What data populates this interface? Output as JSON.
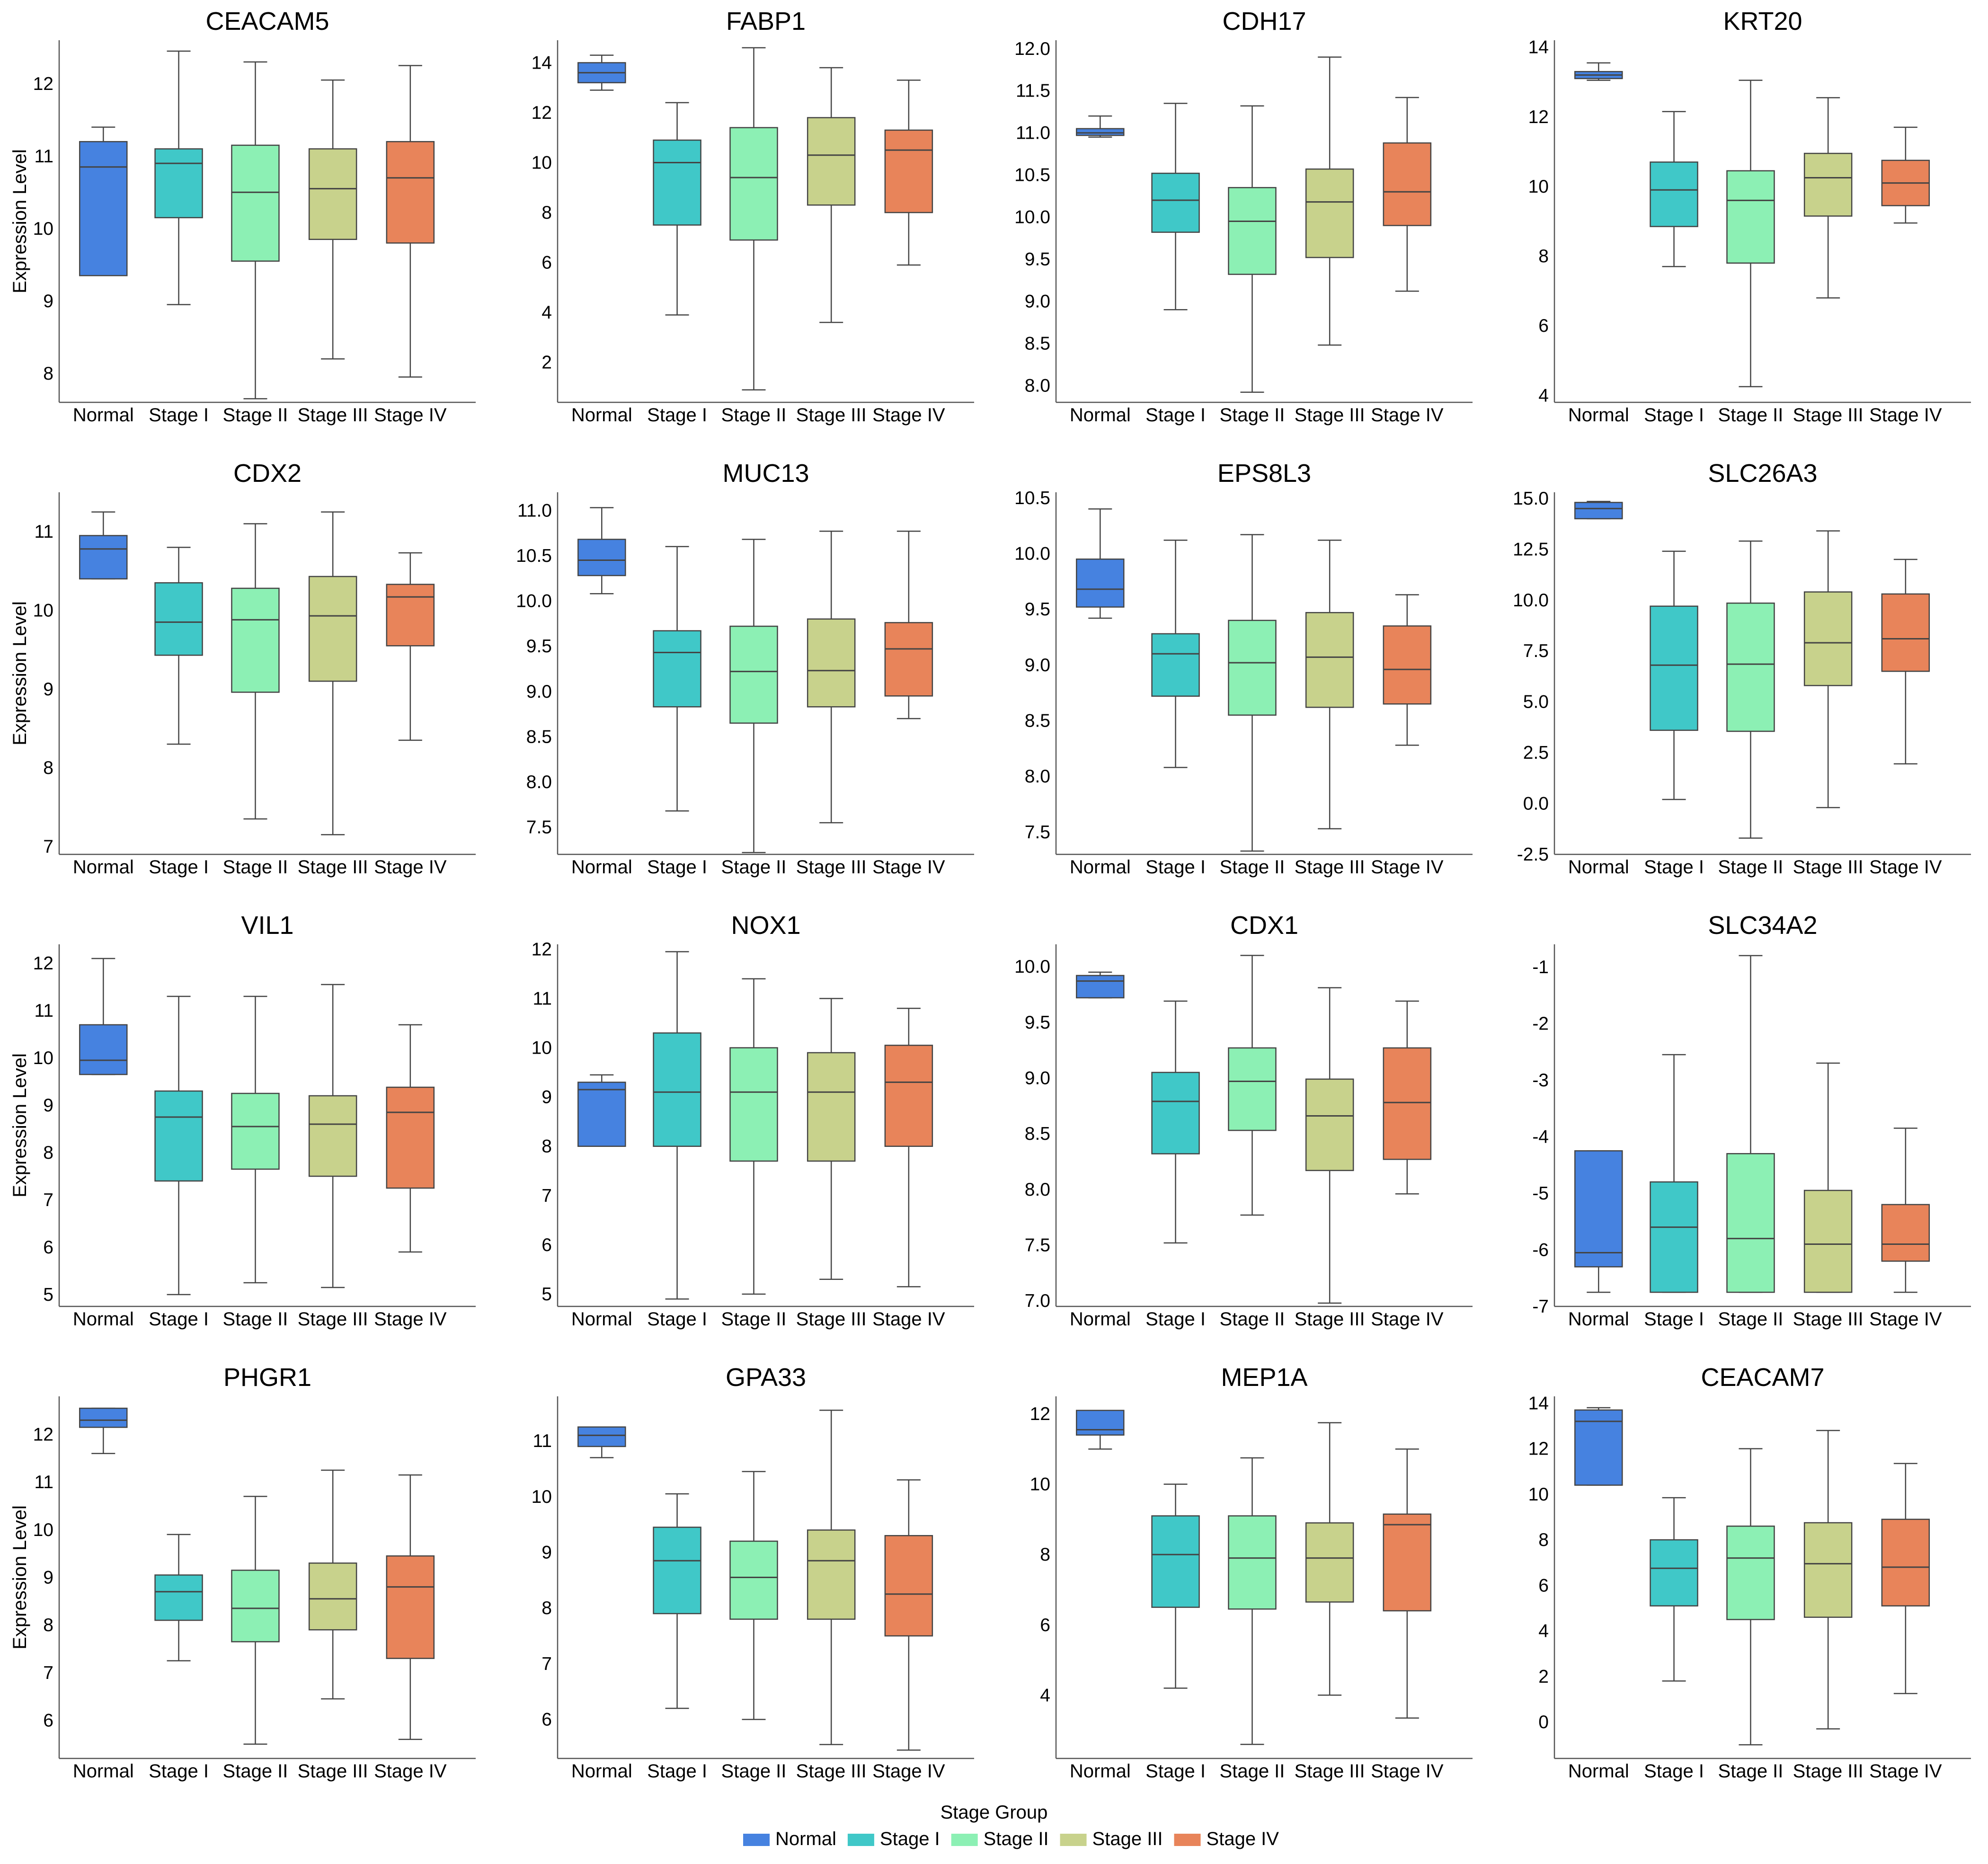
{
  "colors": {
    "Normal": "#4682e0",
    "Stage I": "#40c8c8",
    "Stage II": "#8cf0b4",
    "Stage III": "#c8d28c",
    "Stage IV": "#e8845a",
    "axis": "#555555",
    "box_edge": "#444444"
  },
  "chart_data": {
    "type": "boxplot",
    "ylabel": "Expression Level",
    "categories": [
      "Normal",
      "Stage I",
      "Stage II",
      "Stage III",
      "Stage IV"
    ],
    "legend": {
      "title": "Stage Group",
      "entries": [
        "Normal",
        "Stage I",
        "Stage II",
        "Stage III",
        "Stage IV"
      ],
      "placement": "bottom-center"
    },
    "panels": [
      {
        "title": "CEACAM5",
        "ylim": [
          7.6,
          12.6
        ],
        "yticks": [
          "8",
          "9",
          "10",
          "11",
          "12"
        ],
        "show_ylabel": true,
        "boxes": [
          [
            9.35,
            9.35,
            10.85,
            11.2,
            11.4
          ],
          [
            8.95,
            10.15,
            10.9,
            11.1,
            12.45
          ],
          [
            7.65,
            9.55,
            10.5,
            11.15,
            12.3
          ],
          [
            8.2,
            9.85,
            10.55,
            11.1,
            12.05
          ],
          [
            7.95,
            9.8,
            10.7,
            11.2,
            12.25
          ]
        ]
      },
      {
        "title": "FABP1",
        "ylim": [
          0.4,
          14.9
        ],
        "yticks": [
          "2",
          "4",
          "6",
          "8",
          "10",
          "12",
          "14"
        ],
        "show_ylabel": false,
        "boxes": [
          [
            12.9,
            13.2,
            13.6,
            14.0,
            14.3
          ],
          [
            3.9,
            7.5,
            10.0,
            10.9,
            12.4
          ],
          [
            0.9,
            6.9,
            9.4,
            11.4,
            14.6
          ],
          [
            3.6,
            8.3,
            10.3,
            11.8,
            13.8
          ],
          [
            5.9,
            8.0,
            10.5,
            11.3,
            13.3
          ]
        ]
      },
      {
        "title": "CDH17",
        "ylim": [
          7.8,
          12.1
        ],
        "yticks": [
          "8.0",
          "8.5",
          "9.0",
          "9.5",
          "10.0",
          "10.5",
          "11.0",
          "11.5",
          "12.0"
        ],
        "show_ylabel": false,
        "boxes": [
          [
            10.95,
            10.97,
            11.0,
            11.05,
            11.2
          ],
          [
            8.9,
            9.82,
            10.2,
            10.52,
            11.35
          ],
          [
            7.92,
            9.32,
            9.95,
            10.35,
            11.32
          ],
          [
            8.48,
            9.52,
            10.18,
            10.57,
            11.9
          ],
          [
            9.12,
            9.9,
            10.3,
            10.88,
            11.42
          ]
        ]
      },
      {
        "title": "KRT20",
        "ylim": [
          3.8,
          14.2
        ],
        "yticks": [
          "4",
          "6",
          "8",
          "10",
          "12",
          "14"
        ],
        "show_ylabel": false,
        "boxes": [
          [
            13.05,
            13.1,
            13.2,
            13.3,
            13.55
          ],
          [
            7.7,
            8.85,
            9.9,
            10.7,
            12.15
          ],
          [
            4.25,
            7.8,
            9.6,
            10.45,
            13.05
          ],
          [
            6.8,
            9.15,
            10.25,
            10.95,
            12.55
          ],
          [
            8.95,
            9.45,
            10.1,
            10.75,
            11.7
          ]
        ]
      },
      {
        "title": "CDX2",
        "ylim": [
          6.9,
          11.5
        ],
        "yticks": [
          "7",
          "8",
          "9",
          "10",
          "11"
        ],
        "show_ylabel": true,
        "boxes": [
          [
            10.4,
            10.4,
            10.78,
            10.95,
            11.25
          ],
          [
            8.3,
            9.43,
            9.85,
            10.35,
            10.8
          ],
          [
            7.35,
            8.96,
            9.88,
            10.28,
            11.1
          ],
          [
            7.15,
            9.1,
            9.93,
            10.43,
            11.25
          ],
          [
            8.35,
            9.55,
            10.17,
            10.33,
            10.73
          ]
        ]
      },
      {
        "title": "MUC13",
        "ylim": [
          7.2,
          11.2
        ],
        "yticks": [
          "7.5",
          "8.0",
          "8.5",
          "9.0",
          "9.5",
          "10.0",
          "10.5",
          "11.0"
        ],
        "show_ylabel": false,
        "boxes": [
          [
            10.08,
            10.28,
            10.45,
            10.68,
            11.03
          ],
          [
            7.68,
            8.83,
            9.43,
            9.67,
            10.6
          ],
          [
            7.22,
            8.65,
            9.22,
            9.72,
            10.68
          ],
          [
            7.55,
            8.83,
            9.23,
            9.8,
            10.77
          ],
          [
            8.7,
            8.95,
            9.47,
            9.76,
            10.77
          ]
        ]
      },
      {
        "title": "EPS8L3",
        "ylim": [
          7.3,
          10.55
        ],
        "yticks": [
          "7.5",
          "8.0",
          "8.5",
          "9.0",
          "9.5",
          "10.0",
          "10.5"
        ],
        "show_ylabel": false,
        "boxes": [
          [
            9.42,
            9.52,
            9.68,
            9.95,
            10.4
          ],
          [
            8.08,
            8.72,
            9.1,
            9.28,
            10.12
          ],
          [
            7.33,
            8.55,
            9.02,
            9.4,
            10.17
          ],
          [
            7.53,
            8.62,
            9.07,
            9.47,
            10.12
          ],
          [
            8.28,
            8.65,
            8.96,
            9.35,
            9.63
          ]
        ]
      },
      {
        "title": "SLC26A3",
        "ylim": [
          -2.5,
          15.3
        ],
        "yticks": [
          "-2.5",
          "0.0",
          "2.5",
          "5.0",
          "7.5",
          "10.0",
          "12.5",
          "15.0"
        ],
        "show_ylabel": false,
        "boxes": [
          [
            14.0,
            14.0,
            14.5,
            14.8,
            14.85
          ],
          [
            0.2,
            3.6,
            6.8,
            9.7,
            12.4
          ],
          [
            -1.7,
            3.55,
            6.85,
            9.85,
            12.9
          ],
          [
            -0.2,
            5.8,
            7.9,
            10.4,
            13.4
          ],
          [
            1.95,
            6.5,
            8.1,
            10.3,
            12.0
          ]
        ]
      },
      {
        "title": "VIL1",
        "ylim": [
          4.75,
          12.4
        ],
        "yticks": [
          "5",
          "6",
          "7",
          "8",
          "9",
          "10",
          "11",
          "12"
        ],
        "show_ylabel": true,
        "boxes": [
          [
            9.65,
            9.65,
            9.95,
            10.7,
            12.1
          ],
          [
            5.0,
            7.4,
            8.75,
            9.3,
            11.3
          ],
          [
            5.25,
            7.65,
            8.55,
            9.25,
            11.3
          ],
          [
            5.15,
            7.5,
            8.6,
            9.2,
            11.55
          ],
          [
            5.9,
            7.25,
            8.85,
            9.38,
            10.7
          ]
        ]
      },
      {
        "title": "NOX1",
        "ylim": [
          4.75,
          12.1
        ],
        "yticks": [
          "5",
          "6",
          "7",
          "8",
          "9",
          "10",
          "11",
          "12"
        ],
        "show_ylabel": false,
        "boxes": [
          [
            8.0,
            8.0,
            9.15,
            9.3,
            9.45
          ],
          [
            4.9,
            8.0,
            9.1,
            10.3,
            11.95
          ],
          [
            5.0,
            7.7,
            9.1,
            10.0,
            11.4
          ],
          [
            5.3,
            7.7,
            9.1,
            9.9,
            11.0
          ],
          [
            5.15,
            8.0,
            9.3,
            10.05,
            10.8
          ]
        ]
      },
      {
        "title": "CDX1",
        "ylim": [
          6.95,
          10.2
        ],
        "yticks": [
          "7.0",
          "7.5",
          "8.0",
          "8.5",
          "9.0",
          "9.5",
          "10.0"
        ],
        "show_ylabel": false,
        "boxes": [
          [
            9.72,
            9.72,
            9.87,
            9.92,
            9.95
          ],
          [
            7.52,
            8.32,
            8.79,
            9.05,
            9.69
          ],
          [
            7.77,
            8.53,
            8.97,
            9.27,
            10.1
          ],
          [
            6.98,
            8.17,
            8.66,
            8.99,
            9.81
          ],
          [
            7.96,
            8.27,
            8.78,
            9.27,
            9.69
          ]
        ]
      },
      {
        "title": "SLC34A2",
        "ylim": [
          -7.0,
          -0.6
        ],
        "yticks": [
          "-7",
          "-6",
          "-5",
          "-4",
          "-3",
          "-2",
          "-1"
        ],
        "show_ylabel": false,
        "boxes": [
          [
            -6.75,
            -6.3,
            -6.05,
            -4.25,
            -4.25
          ],
          [
            -6.75,
            -6.75,
            -5.6,
            -4.8,
            -2.55
          ],
          [
            -6.75,
            -6.75,
            -5.8,
            -4.3,
            -0.8
          ],
          [
            -6.75,
            -6.75,
            -5.9,
            -4.95,
            -2.7
          ],
          [
            -6.75,
            -6.2,
            -5.9,
            -5.2,
            -3.85
          ]
        ]
      },
      {
        "title": "PHGR1",
        "ylim": [
          5.2,
          12.8
        ],
        "yticks": [
          "6",
          "7",
          "8",
          "9",
          "10",
          "11",
          "12"
        ],
        "show_ylabel": true,
        "boxes": [
          [
            11.6,
            12.15,
            12.3,
            12.55,
            12.55
          ],
          [
            7.25,
            8.1,
            8.7,
            9.05,
            9.9
          ],
          [
            5.5,
            7.65,
            8.35,
            9.15,
            10.7
          ],
          [
            6.45,
            7.9,
            8.55,
            9.3,
            11.25
          ],
          [
            5.6,
            7.3,
            8.8,
            9.45,
            11.15
          ]
        ]
      },
      {
        "title": "GPA33",
        "ylim": [
          5.3,
          11.8
        ],
        "yticks": [
          "6",
          "7",
          "8",
          "9",
          "10",
          "11"
        ],
        "show_ylabel": false,
        "boxes": [
          [
            10.7,
            10.9,
            11.1,
            11.25,
            11.25
          ],
          [
            6.2,
            7.9,
            8.85,
            9.45,
            10.05
          ],
          [
            6.0,
            7.8,
            8.55,
            9.2,
            10.45
          ],
          [
            5.55,
            7.8,
            8.85,
            9.4,
            11.55
          ],
          [
            5.45,
            7.5,
            8.25,
            9.3,
            10.3
          ]
        ]
      },
      {
        "title": "MEP1A",
        "ylim": [
          2.2,
          12.5
        ],
        "yticks": [
          "4",
          "6",
          "8",
          "10",
          "12"
        ],
        "show_ylabel": false,
        "boxes": [
          [
            11.0,
            11.4,
            11.55,
            12.1,
            12.1
          ],
          [
            4.2,
            6.5,
            8.0,
            9.1,
            10.0
          ],
          [
            2.6,
            6.45,
            7.9,
            9.1,
            10.75
          ],
          [
            4.0,
            6.65,
            7.9,
            8.9,
            11.75
          ],
          [
            3.35,
            6.4,
            8.85,
            9.15,
            11.0
          ]
        ]
      },
      {
        "title": "CEACAM7",
        "ylim": [
          -1.6,
          14.3
        ],
        "yticks": [
          "0",
          "2",
          "4",
          "6",
          "8",
          "10",
          "12",
          "14"
        ],
        "show_ylabel": false,
        "boxes": [
          [
            10.4,
            10.4,
            13.2,
            13.7,
            13.8
          ],
          [
            1.8,
            5.1,
            6.75,
            8.0,
            9.85
          ],
          [
            -1.0,
            4.5,
            7.2,
            8.6,
            12.0
          ],
          [
            -0.3,
            4.6,
            6.95,
            8.75,
            12.8
          ],
          [
            1.25,
            5.1,
            6.8,
            8.9,
            11.35
          ]
        ]
      }
    ]
  }
}
